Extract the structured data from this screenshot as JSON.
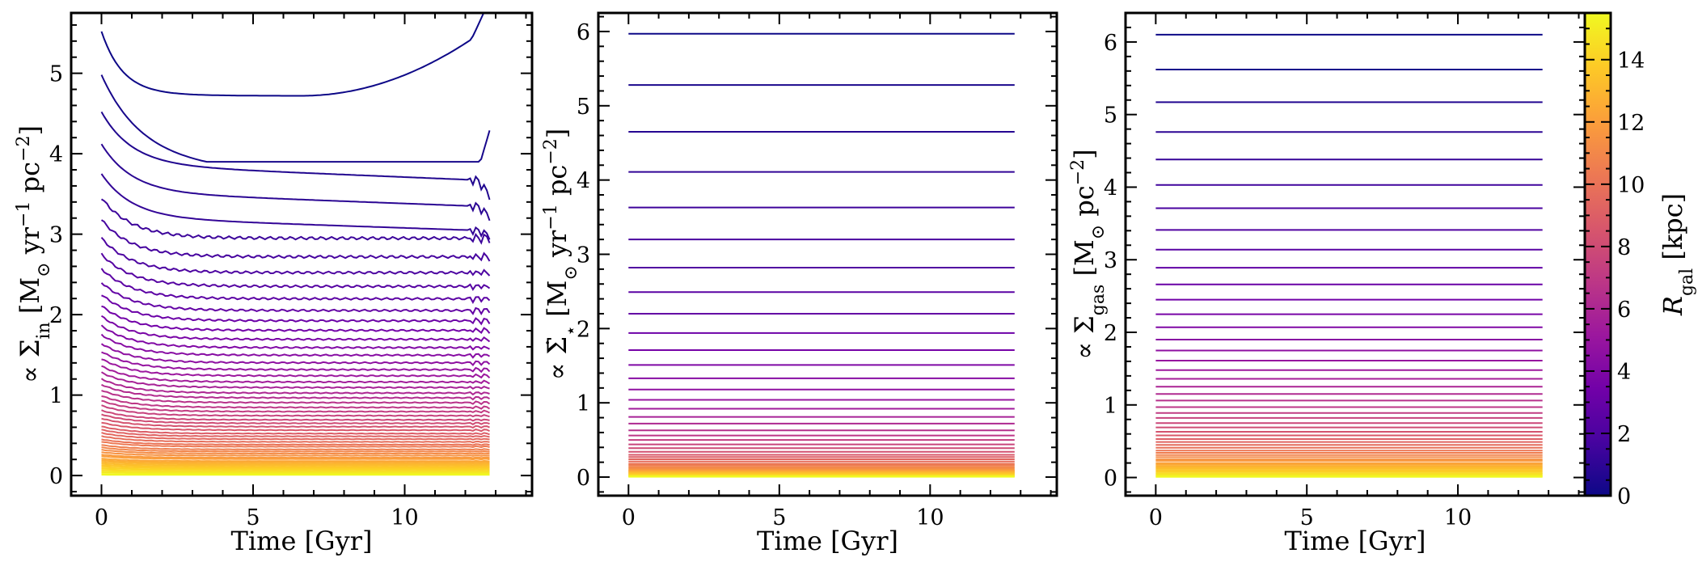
{
  "chart_data": [
    {
      "type": "line",
      "panel": "inflow",
      "xlabel": "Time [Gyr]",
      "ylabel": "∝ Σin [M⊙ yr⁻¹ pc⁻²]",
      "ylabel_parts": [
        "∝ Σ",
        "in",
        " [M",
        "⊙",
        " yr",
        "−1",
        " pc",
        "−2",
        "]"
      ],
      "xlim": [
        -1,
        14.2
      ],
      "ylim": [
        -0.25,
        5.75
      ],
      "xticks": [
        0,
        5,
        10
      ],
      "yticks": [
        0,
        1,
        2,
        3,
        4,
        5
      ],
      "x_range": [
        0,
        12.8
      ],
      "series_levels": [
        5.5,
        4.98,
        4.52,
        4.12,
        3.75,
        3.45,
        3.18,
        2.95,
        2.75,
        2.57,
        2.4,
        2.25,
        2.11,
        1.98,
        1.86,
        1.75,
        1.64,
        1.54,
        1.45,
        1.36,
        1.28,
        1.2,
        1.13,
        1.06,
        0.99,
        0.93,
        0.87,
        0.81,
        0.76,
        0.71,
        0.66,
        0.61,
        0.57,
        0.53,
        0.49,
        0.45,
        0.42,
        0.38,
        0.35,
        0.32,
        0.29,
        0.26,
        0.24,
        0.21,
        0.19,
        0.17,
        0.15,
        0.13,
        0.11,
        0.09,
        0.07,
        0.05,
        0.04,
        0.02,
        0.01
      ],
      "note_shape": "decaying from initial level then flattening; top curves rise near t=12.8"
    },
    {
      "type": "line",
      "panel": "star-formation",
      "xlabel": "Time [Gyr]",
      "ylabel": "∝ Σ̇⋆ [M⊙ yr⁻¹ pc⁻²]",
      "ylabel_parts": [
        "∝ ",
        "Σ̇",
        "⋆",
        " [M",
        "⊙",
        " yr",
        "−1",
        " pc",
        "−2",
        "]"
      ],
      "xlim": [
        -1,
        14.2
      ],
      "ylim": [
        -0.25,
        6.25
      ],
      "xticks": [
        0,
        5,
        10
      ],
      "yticks": [
        0,
        1,
        2,
        3,
        4,
        5,
        6
      ],
      "x_range": [
        0,
        12.8
      ],
      "series_levels": [
        5.97,
        5.28,
        4.65,
        4.11,
        3.63,
        3.2,
        2.82,
        2.49,
        2.2,
        1.94,
        1.71,
        1.51,
        1.33,
        1.18,
        1.04,
        0.92,
        0.81,
        0.72,
        0.63,
        0.56,
        0.5,
        0.44,
        0.39,
        0.34,
        0.3,
        0.27,
        0.24,
        0.21,
        0.18,
        0.16,
        0.14,
        0.12,
        0.1,
        0.09,
        0.08,
        0.07,
        0.06,
        0.05,
        0.04,
        0.03,
        0.02,
        0.015,
        0.01,
        0.005
      ]
    },
    {
      "type": "line",
      "panel": "gas",
      "xlabel": "Time [Gyr]",
      "ylabel": "∝ Σgas [M⊙ pc⁻²]",
      "ylabel_parts": [
        "∝ Σ",
        "gas",
        " [M",
        "⊙",
        " pc",
        "−2",
        "]"
      ],
      "xlim": [
        -1,
        14.2
      ],
      "ylim": [
        -0.25,
        6.4
      ],
      "xticks": [
        0,
        5,
        10
      ],
      "yticks": [
        0,
        1,
        2,
        3,
        4,
        5,
        6
      ],
      "x_range": [
        0,
        12.8
      ],
      "series_levels": [
        6.1,
        5.62,
        5.17,
        4.76,
        4.38,
        4.03,
        3.71,
        3.41,
        3.14,
        2.89,
        2.66,
        2.45,
        2.25,
        2.07,
        1.9,
        1.75,
        1.61,
        1.48,
        1.36,
        1.25,
        1.15,
        1.06,
        0.97,
        0.89,
        0.82,
        0.75,
        0.69,
        0.63,
        0.58,
        0.53,
        0.49,
        0.45,
        0.41,
        0.37,
        0.34,
        0.31,
        0.28,
        0.25,
        0.23,
        0.2,
        0.18,
        0.16,
        0.14,
        0.12,
        0.1,
        0.08,
        0.06,
        0.05,
        0.03,
        0.02,
        0.01
      ]
    }
  ],
  "colorbar": {
    "label": "Rgal [kpc]",
    "label_parts": [
      "R",
      "gal",
      " [kpc]"
    ],
    "range": [
      0,
      15.5
    ],
    "ticks": [
      0,
      2,
      4,
      6,
      8,
      10,
      12,
      14
    ],
    "colormap": "plasma",
    "colormap_stops": [
      "#0d0887",
      "#46039f",
      "#7201a8",
      "#9c179e",
      "#bd3786",
      "#d8576b",
      "#ed7953",
      "#fb9f3a",
      "#fdca26",
      "#f0f921"
    ]
  }
}
